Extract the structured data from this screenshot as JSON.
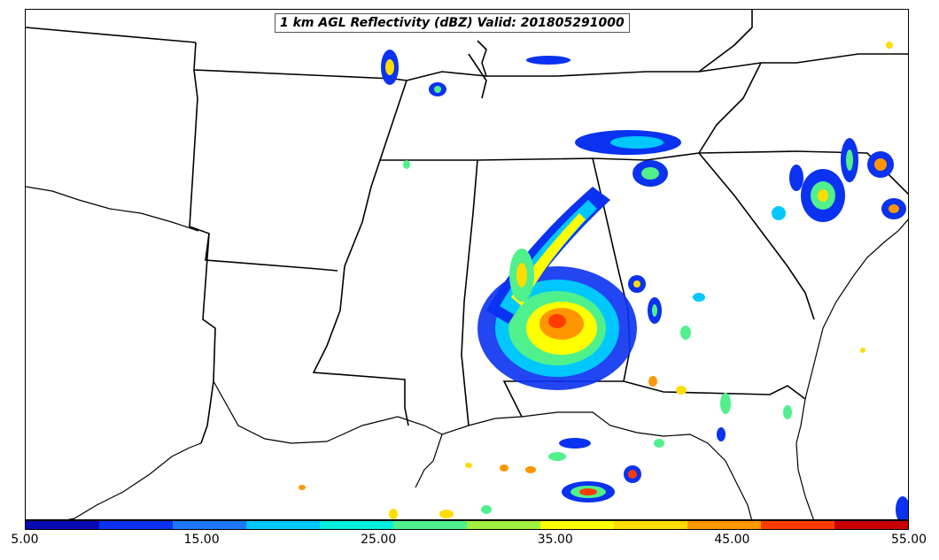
{
  "title": "1 km AGL Reflectivity (dBZ) Valid: 201805291000",
  "colorbar": {
    "tick_labels": [
      "5.00",
      "15.00",
      "25.00",
      "35.00",
      "45.00",
      "55.00"
    ],
    "colors": [
      "#0a0ab4",
      "#0a32f0",
      "#1e78ff",
      "#00c8ff",
      "#00f0dc",
      "#50f08c",
      "#a0f040",
      "#ffff00",
      "#ffdc00",
      "#ff9600",
      "#ff3c00",
      "#c80000"
    ]
  },
  "map_colors": {
    "border": "#000000",
    "background": "#ffffff"
  }
}
